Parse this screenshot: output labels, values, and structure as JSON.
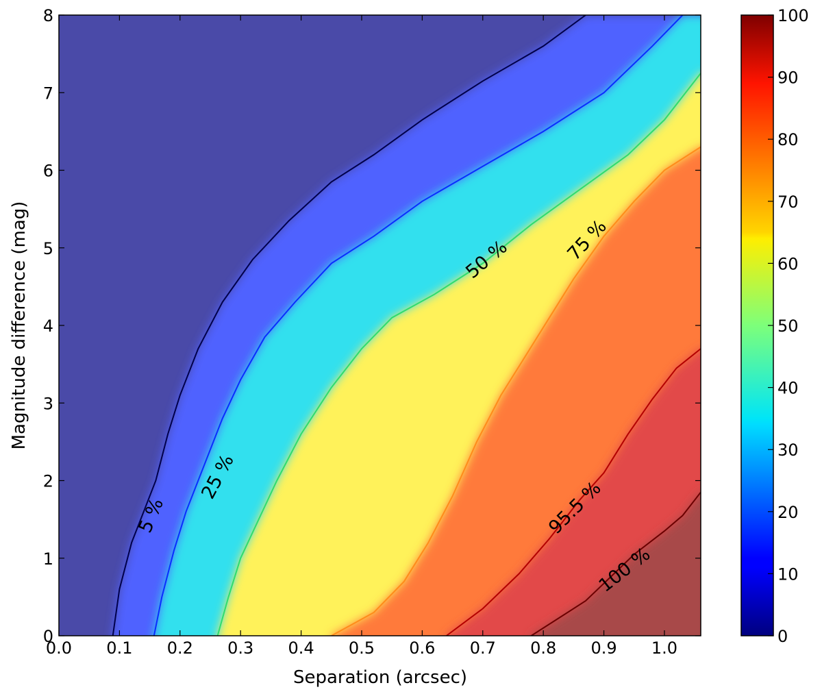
{
  "chart_data": {
    "type": "heatmap",
    "title": "",
    "xlabel": "Separation (arcsec)",
    "ylabel": "Magnitude difference (mag)",
    "xlim": [
      0.0,
      1.06
    ],
    "ylim": [
      0,
      8
    ],
    "x_ticks": [
      "0.0",
      "0.1",
      "0.2",
      "0.3",
      "0.4",
      "0.5",
      "0.6",
      "0.7",
      "0.8",
      "0.9",
      "1.0"
    ],
    "y_ticks": [
      "0",
      "1",
      "2",
      "3",
      "4",
      "5",
      "6",
      "7",
      "8"
    ],
    "colorbar": {
      "range": [
        0,
        100
      ],
      "ticks": [
        "0",
        "10",
        "20",
        "30",
        "40",
        "50",
        "60",
        "70",
        "80",
        "90",
        "100"
      ],
      "colormap": "jet"
    },
    "grid": false,
    "contours": [
      {
        "level": 5,
        "label": "5 %",
        "color": "#00004a",
        "points": [
          [
            0.089,
            0
          ],
          [
            0.1,
            0.6
          ],
          [
            0.12,
            1.2
          ],
          [
            0.14,
            1.6
          ],
          [
            0.16,
            2.0
          ],
          [
            0.18,
            2.6
          ],
          [
            0.2,
            3.1
          ],
          [
            0.23,
            3.7
          ],
          [
            0.27,
            4.3
          ],
          [
            0.32,
            4.85
          ],
          [
            0.38,
            5.35
          ],
          [
            0.45,
            5.85
          ],
          [
            0.52,
            6.2
          ],
          [
            0.6,
            6.65
          ],
          [
            0.7,
            7.15
          ],
          [
            0.8,
            7.6
          ],
          [
            0.87,
            8.0
          ]
        ]
      },
      {
        "level": 25,
        "label": "25 %",
        "color": "#0a2cff",
        "points": [
          [
            0.157,
            0
          ],
          [
            0.17,
            0.5
          ],
          [
            0.19,
            1.1
          ],
          [
            0.21,
            1.6
          ],
          [
            0.24,
            2.2
          ],
          [
            0.27,
            2.8
          ],
          [
            0.3,
            3.3
          ],
          [
            0.34,
            3.85
          ],
          [
            0.39,
            4.3
          ],
          [
            0.45,
            4.8
          ],
          [
            0.52,
            5.15
          ],
          [
            0.6,
            5.6
          ],
          [
            0.7,
            6.05
          ],
          [
            0.8,
            6.5
          ],
          [
            0.9,
            7.0
          ],
          [
            0.98,
            7.6
          ],
          [
            1.03,
            8.0
          ]
        ]
      },
      {
        "level": 50,
        "label": "50 %",
        "color": "#2edc6e",
        "points": [
          [
            0.262,
            0
          ],
          [
            0.28,
            0.5
          ],
          [
            0.3,
            1.0
          ],
          [
            0.33,
            1.5
          ],
          [
            0.36,
            2.0
          ],
          [
            0.4,
            2.6
          ],
          [
            0.45,
            3.2
          ],
          [
            0.5,
            3.7
          ],
          [
            0.55,
            4.1
          ],
          [
            0.62,
            4.4
          ],
          [
            0.7,
            4.8
          ],
          [
            0.78,
            5.3
          ],
          [
            0.86,
            5.75
          ],
          [
            0.94,
            6.2
          ],
          [
            1.0,
            6.65
          ],
          [
            1.06,
            7.25
          ]
        ]
      },
      {
        "level": 75,
        "label": "75 %",
        "color": "#ff8c1a",
        "points": [
          [
            0.45,
            0
          ],
          [
            0.52,
            0.3
          ],
          [
            0.57,
            0.7
          ],
          [
            0.61,
            1.2
          ],
          [
            0.65,
            1.8
          ],
          [
            0.69,
            2.5
          ],
          [
            0.73,
            3.1
          ],
          [
            0.77,
            3.6
          ],
          [
            0.81,
            4.1
          ],
          [
            0.85,
            4.6
          ],
          [
            0.9,
            5.15
          ],
          [
            0.95,
            5.6
          ],
          [
            1.0,
            6.0
          ],
          [
            1.06,
            6.3
          ]
        ]
      },
      {
        "level": 95.5,
        "label": "95.5 %",
        "color": "#b30000",
        "points": [
          [
            0.64,
            0
          ],
          [
            0.7,
            0.35
          ],
          [
            0.76,
            0.8
          ],
          [
            0.81,
            1.25
          ],
          [
            0.86,
            1.75
          ],
          [
            0.9,
            2.1
          ],
          [
            0.94,
            2.6
          ],
          [
            0.98,
            3.05
          ],
          [
            1.02,
            3.45
          ],
          [
            1.06,
            3.7
          ]
        ]
      },
      {
        "level": 100,
        "label": "100 %",
        "color": "#6b0000",
        "points": [
          [
            0.78,
            0
          ],
          [
            0.82,
            0.2
          ],
          [
            0.87,
            0.45
          ],
          [
            0.91,
            0.75
          ],
          [
            0.95,
            1.05
          ],
          [
            1.0,
            1.35
          ],
          [
            1.03,
            1.55
          ],
          [
            1.06,
            1.85
          ]
        ]
      }
    ]
  }
}
